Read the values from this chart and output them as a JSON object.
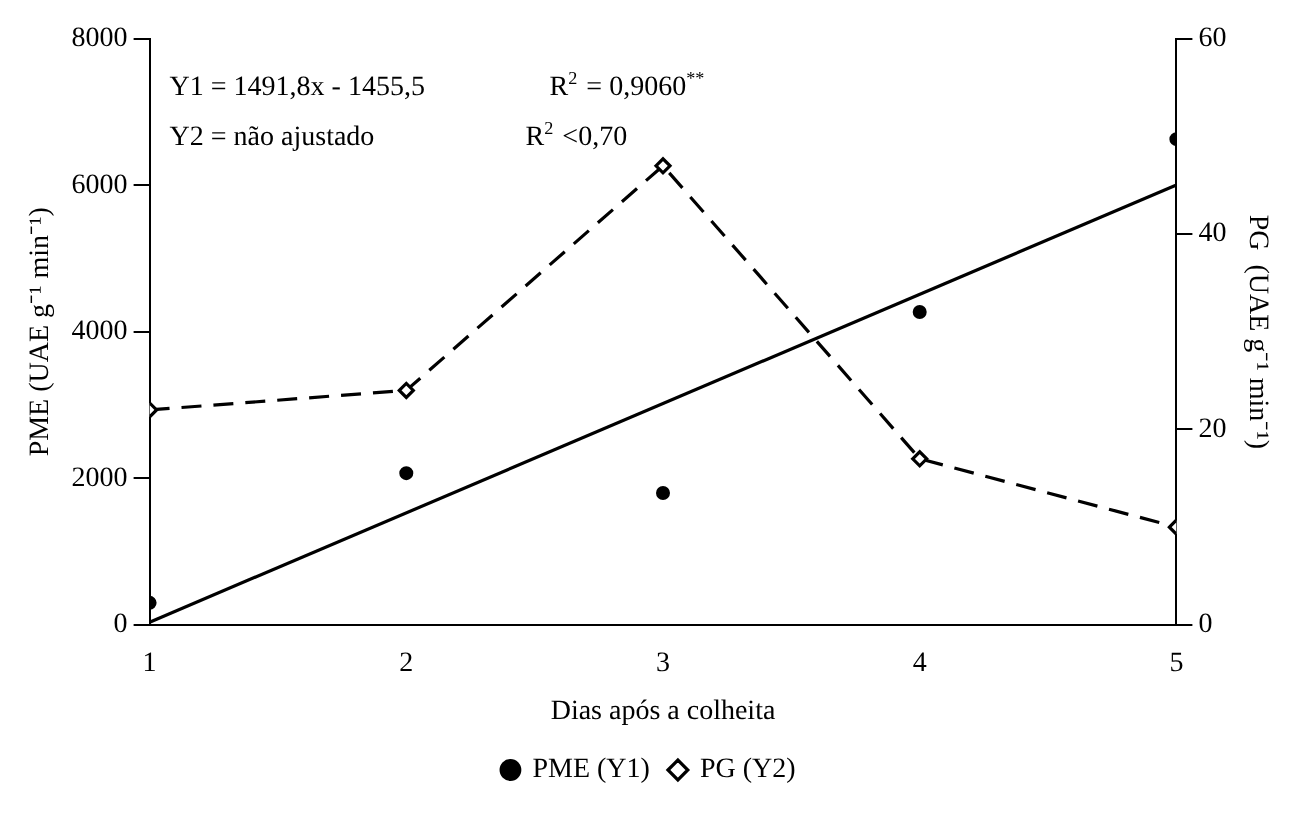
{
  "chart_data": {
    "type": "scatter",
    "xlabel": "Dias após a colheita",
    "ylabel": "PME (UAE g⁻¹ min⁻¹)",
    "y2label": "PG  (UAE g⁻¹ min⁻¹)",
    "x": [
      1,
      2,
      3,
      4,
      5
    ],
    "xlim": [
      1,
      5
    ],
    "xticks": [
      1,
      2,
      3,
      4,
      5
    ],
    "ylim": [
      0,
      8000
    ],
    "yticks": [
      0,
      2000,
      4000,
      6000,
      8000
    ],
    "y2lim": [
      0,
      60
    ],
    "y2ticks": [
      0,
      20,
      40,
      60
    ],
    "series": [
      {
        "name": "PME (Y1)",
        "color": "#000000",
        "marker": "circle",
        "values": [
          300,
          2070,
          1800,
          4270,
          6630
        ]
      },
      {
        "name": "PG (Y2)",
        "type": "line",
        "color": "#000000",
        "marker": "diamond",
        "line_style": "dashed",
        "axis": "y2",
        "values": [
          22,
          24,
          47,
          17,
          10
        ]
      },
      {
        "type": "line",
        "color": "#000000",
        "marker": "none",
        "line_style": "solid",
        "x": [
          1,
          5
        ],
        "values": [
          36,
          6004
        ]
      }
    ],
    "annotations": [
      "Y1 = 1491,8x - 1455,5",
      "R$^{2}$ = 0,9060$^{**}$",
      "Y2 = não ajustado",
      "R$^{2}$ <0,70"
    ],
    "legend": "bottom",
    "grid": false
  }
}
